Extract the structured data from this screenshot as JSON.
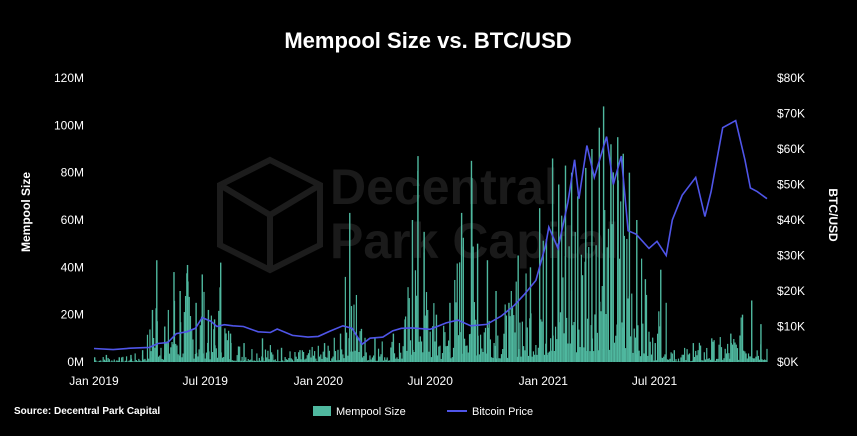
{
  "chart_data": {
    "type": "bar+line",
    "title": "Mempool Size vs. BTC/USD",
    "ylabel_left": "Mempool Size",
    "ylabel_right": "BTC/USD",
    "xticks": [
      "Jan 2019",
      "Jul 2019",
      "Jan 2020",
      "Jul 2020",
      "Jan 2021",
      "Jul 2021"
    ],
    "xrange": [
      "2019-01-01",
      "2021-12-31"
    ],
    "y_left_ticks": [
      "0M",
      "20M",
      "40M",
      "60M",
      "80M",
      "100M",
      "120M"
    ],
    "y_left_range": [
      0,
      120000000
    ],
    "y_right_ticks": [
      "$0K",
      "$10K",
      "$20K",
      "$30K",
      "$40K",
      "$50K",
      "$60K",
      "$70K",
      "$80K"
    ],
    "y_right_range": [
      0,
      80000
    ],
    "series": [
      {
        "name": "Mempool Size",
        "kind": "bar",
        "color": "#4fb89f",
        "points": [
          [
            "2019-01-01",
            2
          ],
          [
            "2019-01-20",
            3
          ],
          [
            "2019-02-10",
            2
          ],
          [
            "2019-03-01",
            3
          ],
          [
            "2019-03-20",
            5
          ],
          [
            "2019-04-05",
            22
          ],
          [
            "2019-04-12",
            43
          ],
          [
            "2019-04-25",
            15
          ],
          [
            "2019-05-10",
            38
          ],
          [
            "2019-05-20",
            30
          ],
          [
            "2019-06-01",
            41
          ],
          [
            "2019-06-15",
            25
          ],
          [
            "2019-06-25",
            37
          ],
          [
            "2019-07-05",
            22
          ],
          [
            "2019-07-15",
            18
          ],
          [
            "2019-07-25",
            42
          ],
          [
            "2019-08-10",
            12
          ],
          [
            "2019-09-01",
            8
          ],
          [
            "2019-10-01",
            10
          ],
          [
            "2019-11-01",
            6
          ],
          [
            "2019-12-01",
            5
          ],
          [
            "2020-01-10",
            8
          ],
          [
            "2020-02-05",
            12
          ],
          [
            "2020-02-20",
            63
          ],
          [
            "2020-03-10",
            14
          ],
          [
            "2020-04-01",
            10
          ],
          [
            "2020-05-01",
            12
          ],
          [
            "2020-05-20",
            18
          ],
          [
            "2020-06-01",
            60
          ],
          [
            "2020-06-10",
            87
          ],
          [
            "2020-06-20",
            55
          ],
          [
            "2020-07-10",
            20
          ],
          [
            "2020-08-01",
            25
          ],
          [
            "2020-08-20",
            63
          ],
          [
            "2020-09-05",
            85
          ],
          [
            "2020-09-15",
            50
          ],
          [
            "2020-10-01",
            43
          ],
          [
            "2020-10-15",
            30
          ],
          [
            "2020-11-05",
            25
          ],
          [
            "2020-11-20",
            45
          ],
          [
            "2020-12-10",
            40
          ],
          [
            "2020-12-25",
            65
          ],
          [
            "2021-01-05",
            52
          ],
          [
            "2021-01-15",
            86
          ],
          [
            "2021-01-25",
            75
          ],
          [
            "2021-02-05",
            83
          ],
          [
            "2021-02-15",
            80
          ],
          [
            "2021-02-25",
            70
          ],
          [
            "2021-03-10",
            82
          ],
          [
            "2021-03-20",
            90
          ],
          [
            "2021-04-01",
            99
          ],
          [
            "2021-04-08",
            108
          ],
          [
            "2021-04-20",
            92
          ],
          [
            "2021-05-01",
            95
          ],
          [
            "2021-05-10",
            88
          ],
          [
            "2021-05-20",
            80
          ],
          [
            "2021-06-01",
            60
          ],
          [
            "2021-06-15",
            35
          ],
          [
            "2021-07-01",
            8
          ],
          [
            "2021-07-10",
            39
          ],
          [
            "2021-08-01",
            5
          ],
          [
            "2021-09-01",
            8
          ],
          [
            "2021-10-01",
            10
          ],
          [
            "2021-11-01",
            12
          ],
          [
            "2021-11-20",
            20
          ],
          [
            "2021-12-05",
            26
          ],
          [
            "2021-12-20",
            16
          ]
        ]
      },
      {
        "name": "Bitcoin Price",
        "kind": "line",
        "color": "#4f55e8",
        "points": [
          [
            "2019-01-01",
            3800
          ],
          [
            "2019-02-01",
            3500
          ],
          [
            "2019-03-01",
            3900
          ],
          [
            "2019-04-01",
            4100
          ],
          [
            "2019-04-15",
            5200
          ],
          [
            "2019-05-01",
            5500
          ],
          [
            "2019-05-15",
            8000
          ],
          [
            "2019-06-01",
            8500
          ],
          [
            "2019-06-15",
            9500
          ],
          [
            "2019-06-26",
            12500
          ],
          [
            "2019-07-10",
            11500
          ],
          [
            "2019-07-20",
            10000
          ],
          [
            "2019-08-01",
            10500
          ],
          [
            "2019-08-15",
            10200
          ],
          [
            "2019-09-01",
            10000
          ],
          [
            "2019-09-25",
            8500
          ],
          [
            "2019-10-15",
            8300
          ],
          [
            "2019-10-26",
            9300
          ],
          [
            "2019-11-20",
            7500
          ],
          [
            "2019-12-15",
            7000
          ],
          [
            "2020-01-01",
            7200
          ],
          [
            "2020-01-20",
            8700
          ],
          [
            "2020-02-10",
            10200
          ],
          [
            "2020-02-25",
            9500
          ],
          [
            "2020-03-12",
            5000
          ],
          [
            "2020-03-25",
            6700
          ],
          [
            "2020-04-15",
            7000
          ],
          [
            "2020-05-01",
            8800
          ],
          [
            "2020-05-15",
            9500
          ],
          [
            "2020-06-01",
            9600
          ],
          [
            "2020-07-01",
            9200
          ],
          [
            "2020-07-27",
            11000
          ],
          [
            "2020-08-15",
            11800
          ],
          [
            "2020-09-05",
            10200
          ],
          [
            "2020-10-01",
            10600
          ],
          [
            "2020-10-25",
            13000
          ],
          [
            "2020-11-15",
            16000
          ],
          [
            "2020-12-01",
            19000
          ],
          [
            "2020-12-20",
            23000
          ],
          [
            "2021-01-05",
            33000
          ],
          [
            "2021-01-10",
            38000
          ],
          [
            "2021-01-25",
            32000
          ],
          [
            "2021-02-10",
            45000
          ],
          [
            "2021-02-21",
            57000
          ],
          [
            "2021-02-28",
            46000
          ],
          [
            "2021-03-13",
            61000
          ],
          [
            "2021-03-25",
            52000
          ],
          [
            "2021-04-14",
            63500
          ],
          [
            "2021-04-25",
            50000
          ],
          [
            "2021-05-08",
            58000
          ],
          [
            "2021-05-19",
            37000
          ],
          [
            "2021-06-01",
            36000
          ],
          [
            "2021-06-22",
            32000
          ],
          [
            "2021-07-05",
            34000
          ],
          [
            "2021-07-20",
            30000
          ],
          [
            "2021-07-30",
            40000
          ],
          [
            "2021-08-15",
            47000
          ],
          [
            "2021-09-06",
            52000
          ],
          [
            "2021-09-21",
            41000
          ],
          [
            "2021-10-01",
            48000
          ],
          [
            "2021-10-20",
            66000
          ],
          [
            "2021-11-10",
            68000
          ],
          [
            "2021-11-25",
            57000
          ],
          [
            "2021-12-04",
            49000
          ],
          [
            "2021-12-15",
            48000
          ],
          [
            "2021-12-31",
            46000
          ]
        ]
      }
    ],
    "legend": [
      "Mempool Size",
      "Bitcoin Price"
    ],
    "legend_position": "bottom"
  },
  "source": "Source: Decentral Park Capital",
  "watermark": [
    "Decentral",
    "Park Capital"
  ],
  "colors": {
    "background": "#000000",
    "bars": "#4fb89f",
    "line": "#4f55e8"
  }
}
